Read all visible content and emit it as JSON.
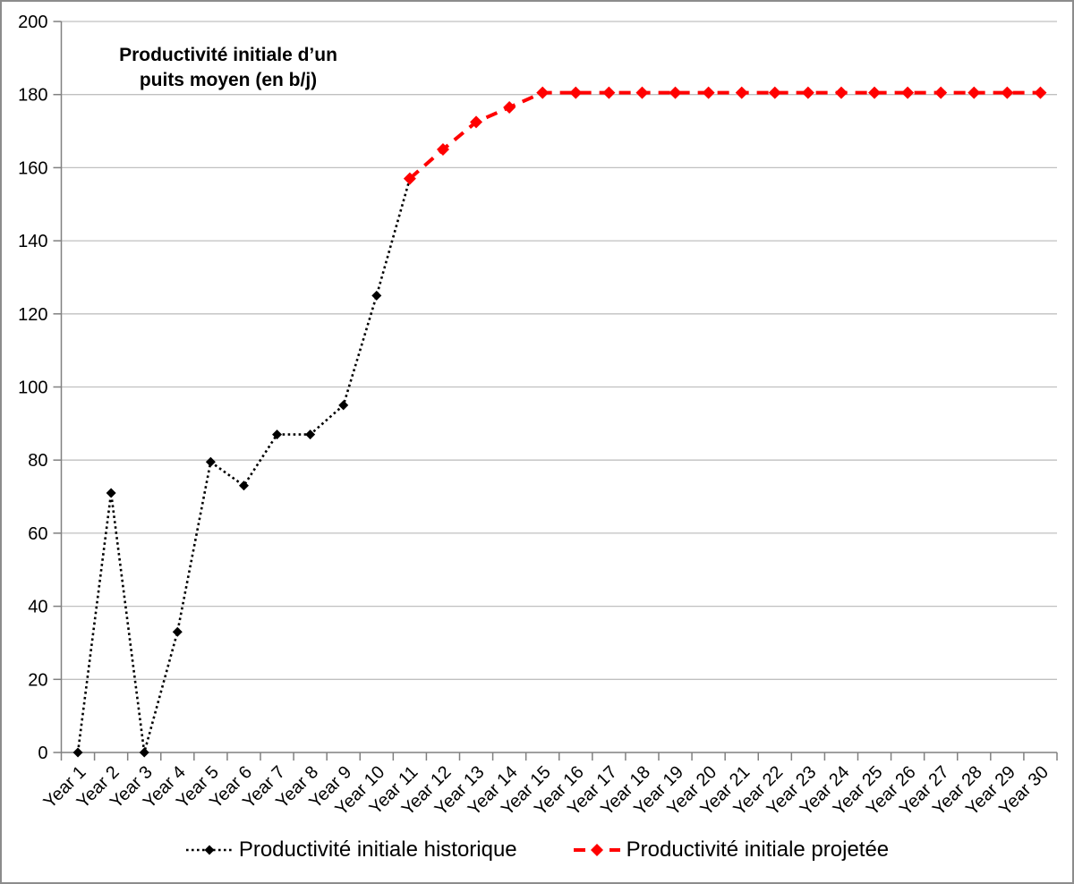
{
  "figure": {
    "title": "Productivité initiale d’un puits moyen (en b/j)"
  },
  "colors": {
    "historical": "#000000",
    "projected": "#ff0000",
    "gridline": "#c0c0c0",
    "axis": "#808080",
    "text": "#000000"
  },
  "chart_data": {
    "type": "line",
    "title": "Productivité initiale d’un puits moyen (en b/j)",
    "xlabel": "",
    "ylabel": "",
    "ylim": [
      0,
      200
    ],
    "yticks": [
      0,
      20,
      40,
      60,
      80,
      100,
      120,
      140,
      160,
      180,
      200
    ],
    "grid": "horizontal",
    "legend_position": "bottom",
    "categories": [
      "Year 1",
      "Year 2",
      "Year 3",
      "Year 4",
      "Year 5",
      "Year 6",
      "Year 7",
      "Year 8",
      "Year 9",
      "Year 10",
      "Year 11",
      "Year 12",
      "Year 13",
      "Year 14",
      "Year 15",
      "Year 16",
      "Year 17",
      "Year 18",
      "Year 19",
      "Year 20",
      "Year 21",
      "Year 22",
      "Year 23",
      "Year 24",
      "Year 25",
      "Year 26",
      "Year 27",
      "Year 28",
      "Year 29",
      "Year 30"
    ],
    "series": [
      {
        "name": "Productivité initiale historique",
        "color": "#000000",
        "line_style": "dotted",
        "marker": "diamond",
        "start_year": 1,
        "values": [
          0,
          71,
          0,
          33,
          79.5,
          73,
          87,
          87,
          95,
          125,
          157
        ]
      },
      {
        "name": "Productivité initiale projetée",
        "color": "#ff0000",
        "line_style": "dashed",
        "marker": "diamond",
        "start_year": 11,
        "values": [
          157,
          165,
          172.5,
          176.5,
          180.5,
          180.5,
          180.5,
          180.5,
          180.5,
          180.5,
          180.5,
          180.5,
          180.5,
          180.5,
          180.5,
          180.5,
          180.5,
          180.5,
          180.5,
          180.5
        ]
      }
    ]
  }
}
